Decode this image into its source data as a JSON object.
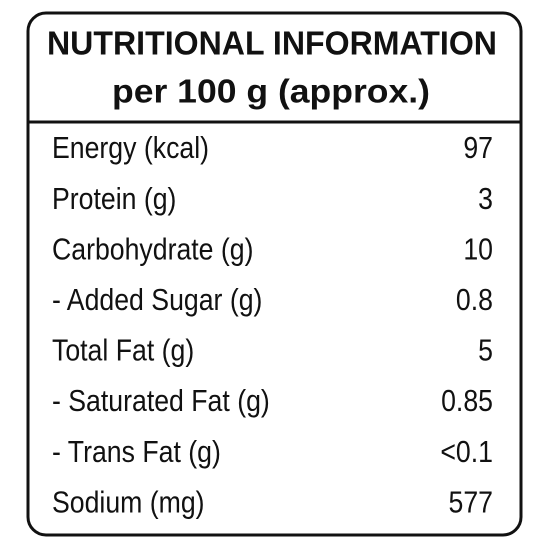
{
  "header": {
    "title": "NUTRITIONAL INFORMATION",
    "subtitle": "per 100 g (approx.)"
  },
  "table": {
    "rows": [
      [
        "Energy (kcal)",
        "97"
      ],
      [
        "Protein (g)",
        "3"
      ],
      [
        "Carbohydrate (g)",
        "10"
      ],
      [
        "- Added Sugar (g)",
        "0.8"
      ],
      [
        "Total Fat (g)",
        "5"
      ],
      [
        "- Saturated Fat (g)",
        "0.85"
      ],
      [
        "- Trans Fat (g)",
        "<0.1"
      ],
      [
        "Sodium (mg)",
        "577"
      ]
    ]
  }
}
